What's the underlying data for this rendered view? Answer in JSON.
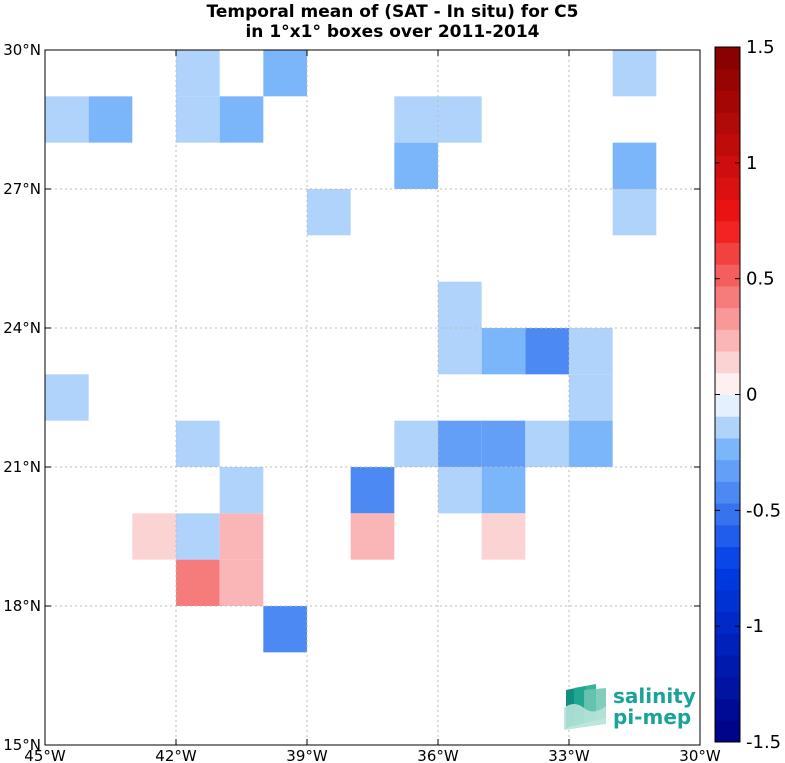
{
  "chart_data": {
    "type": "heatmap",
    "title": [
      "Temporal mean of (SAT - In situ) for C5",
      "in 1°x1° boxes over 2011-2014"
    ],
    "x_ticks": [
      {
        "value": -45,
        "label": "45°W"
      },
      {
        "value": -42,
        "label": "42°W"
      },
      {
        "value": -39,
        "label": "39°W"
      },
      {
        "value": -36,
        "label": "36°W"
      },
      {
        "value": -33,
        "label": "33°W"
      },
      {
        "value": -30,
        "label": "30°W"
      }
    ],
    "y_ticks": [
      {
        "value": 15,
        "label": "15°N"
      },
      {
        "value": 18,
        "label": "18°N"
      },
      {
        "value": 21,
        "label": "21°N"
      },
      {
        "value": 24,
        "label": "24°N"
      },
      {
        "value": 27,
        "label": "27°N"
      },
      {
        "value": 30,
        "label": "30°N"
      }
    ],
    "xlim": [
      -45,
      -30
    ],
    "ylim": [
      15,
      30
    ],
    "grid": true,
    "colorbar": {
      "range": [
        -1.5,
        1.5
      ],
      "levels": 32,
      "ticks": [
        {
          "value": 1.5,
          "label": "1.5"
        },
        {
          "value": 1,
          "label": "1"
        },
        {
          "value": 0.5,
          "label": "0.5"
        },
        {
          "value": 0,
          "label": "0"
        },
        {
          "value": -0.5,
          "label": "-0.5"
        },
        {
          "value": -1,
          "label": "-1"
        },
        {
          "value": -1.5,
          "label": "-1.5"
        }
      ]
    },
    "cells": [
      {
        "lon": -42,
        "lat": 29,
        "value": -0.12
      },
      {
        "lon": -40,
        "lat": 29,
        "value": -0.28
      },
      {
        "lon": -32,
        "lat": 29,
        "value": -0.12
      },
      {
        "lon": -45,
        "lat": 28,
        "value": -0.12
      },
      {
        "lon": -44,
        "lat": 28,
        "value": -0.28
      },
      {
        "lon": -42,
        "lat": 28,
        "value": -0.12
      },
      {
        "lon": -41,
        "lat": 28,
        "value": -0.28
      },
      {
        "lon": -37,
        "lat": 28,
        "value": -0.12
      },
      {
        "lon": -36,
        "lat": 28,
        "value": -0.12
      },
      {
        "lon": -37,
        "lat": 27,
        "value": -0.28
      },
      {
        "lon": -32,
        "lat": 27,
        "value": -0.28
      },
      {
        "lon": -39,
        "lat": 26,
        "value": -0.12
      },
      {
        "lon": -32,
        "lat": 26,
        "value": -0.12
      },
      {
        "lon": -36,
        "lat": 24,
        "value": -0.12
      },
      {
        "lon": -36,
        "lat": 23,
        "value": -0.12
      },
      {
        "lon": -35,
        "lat": 23,
        "value": -0.28
      },
      {
        "lon": -34,
        "lat": 23,
        "value": -0.38
      },
      {
        "lon": -33,
        "lat": 23,
        "value": -0.12
      },
      {
        "lon": -45,
        "lat": 22,
        "value": -0.12
      },
      {
        "lon": -33,
        "lat": 22,
        "value": -0.12
      },
      {
        "lon": -42,
        "lat": 21,
        "value": -0.12
      },
      {
        "lon": -37,
        "lat": 21,
        "value": -0.12
      },
      {
        "lon": -36,
        "lat": 21,
        "value": -0.33
      },
      {
        "lon": -35,
        "lat": 21,
        "value": -0.33
      },
      {
        "lon": -34,
        "lat": 21,
        "value": -0.12
      },
      {
        "lon": -33,
        "lat": 21,
        "value": -0.23
      },
      {
        "lon": -41,
        "lat": 20,
        "value": -0.12
      },
      {
        "lon": -38,
        "lat": 20,
        "value": -0.38
      },
      {
        "lon": -36,
        "lat": 20,
        "value": -0.12
      },
      {
        "lon": -35,
        "lat": 20,
        "value": -0.28
      },
      {
        "lon": -43,
        "lat": 19,
        "value": 0.14
      },
      {
        "lon": -42,
        "lat": 19,
        "value": -0.12
      },
      {
        "lon": -41,
        "lat": 19,
        "value": 0.28
      },
      {
        "lon": -38,
        "lat": 19,
        "value": 0.28
      },
      {
        "lon": -35,
        "lat": 19,
        "value": 0.14
      },
      {
        "lon": -42,
        "lat": 18,
        "value": 0.42
      },
      {
        "lon": -41,
        "lat": 18,
        "value": 0.28
      },
      {
        "lon": -40,
        "lat": 17,
        "value": -0.38
      }
    ]
  },
  "logo": {
    "line1": "salinity",
    "line2": "pi-mep"
  }
}
